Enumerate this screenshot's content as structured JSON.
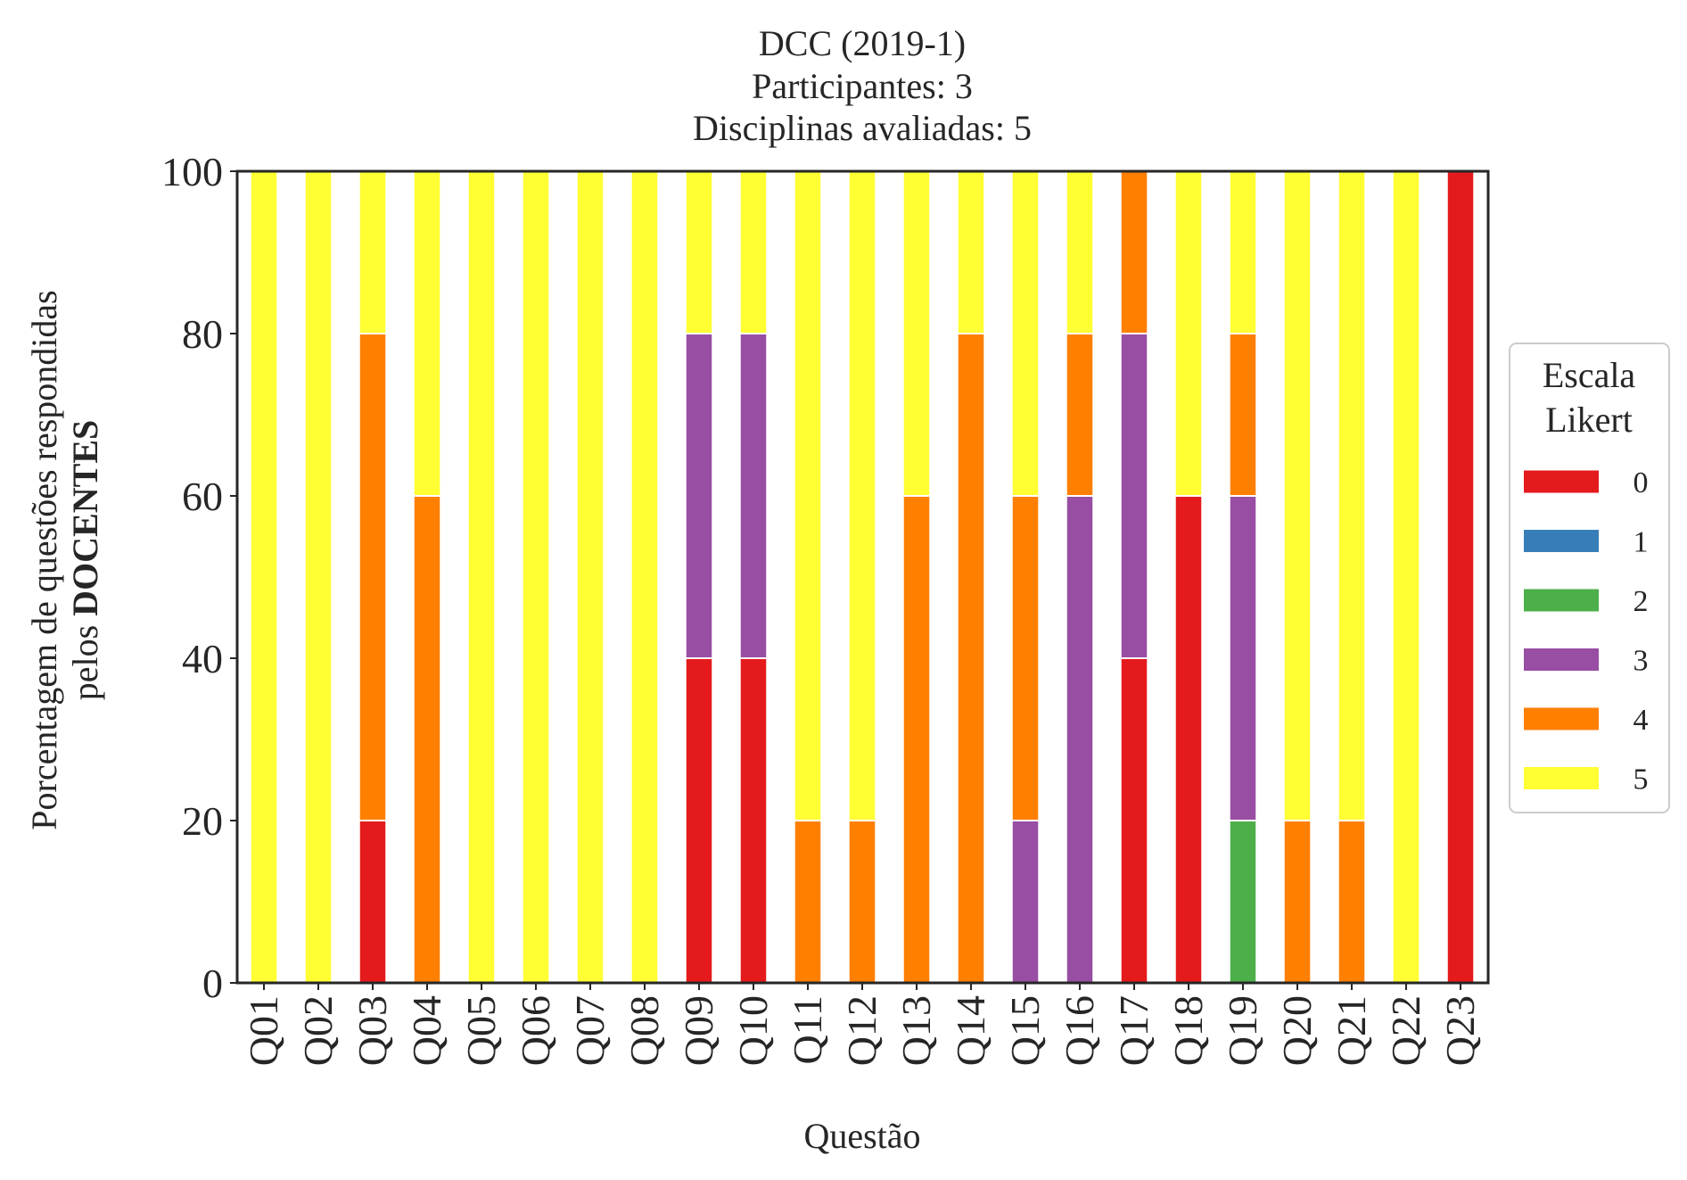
{
  "colors": {
    "likert_0": "#e41a1c",
    "likert_1": "#377eb8",
    "likert_2": "#4daf4a",
    "likert_3": "#984ea3",
    "likert_4": "#ff7f00",
    "likert_5": "#ffff33",
    "axis": "#262626",
    "bar_edge": "#ffffff"
  },
  "chart_data": {
    "type": "bar",
    "stacked": true,
    "title_lines": [
      "DCC (2019-1)",
      "Participantes: 3",
      "Disciplinas avaliadas: 5"
    ],
    "xlabel": "Questão",
    "ylabel_line1": "Porcentagem de questões respondidas",
    "ylabel_line2_prefix": "pelos ",
    "ylabel_line2_bold": "DOCENTES",
    "ylim": [
      0,
      100
    ],
    "yticks": [
      0,
      20,
      40,
      60,
      80,
      100
    ],
    "grid": false,
    "legend": {
      "title_lines": [
        "Escala",
        "Likert"
      ],
      "placement": "center-right outside"
    },
    "categories": [
      "Q01",
      "Q02",
      "Q03",
      "Q04",
      "Q05",
      "Q06",
      "Q07",
      "Q08",
      "Q09",
      "Q10",
      "Q11",
      "Q12",
      "Q13",
      "Q14",
      "Q15",
      "Q16",
      "Q17",
      "Q18",
      "Q19",
      "Q20",
      "Q21",
      "Q22",
      "Q23"
    ],
    "series": [
      {
        "name": "0",
        "color_key": "likert_0",
        "values": [
          0,
          0,
          20,
          0,
          0,
          0,
          0,
          0,
          40,
          40,
          0,
          0,
          0,
          0,
          0,
          0,
          40,
          60,
          0,
          0,
          0,
          0,
          100
        ]
      },
      {
        "name": "1",
        "color_key": "likert_1",
        "values": [
          0,
          0,
          0,
          0,
          0,
          0,
          0,
          0,
          0,
          0,
          0,
          0,
          0,
          0,
          0,
          0,
          0,
          0,
          0,
          0,
          0,
          0,
          0
        ]
      },
      {
        "name": "2",
        "color_key": "likert_2",
        "values": [
          0,
          0,
          0,
          0,
          0,
          0,
          0,
          0,
          0,
          0,
          0,
          0,
          0,
          0,
          0,
          0,
          0,
          0,
          20,
          0,
          0,
          0,
          0
        ]
      },
      {
        "name": "3",
        "color_key": "likert_3",
        "values": [
          0,
          0,
          0,
          0,
          0,
          0,
          0,
          0,
          40,
          40,
          0,
          0,
          0,
          0,
          20,
          60,
          40,
          0,
          40,
          0,
          0,
          0,
          0
        ]
      },
      {
        "name": "4",
        "color_key": "likert_4",
        "values": [
          0,
          0,
          60,
          60,
          0,
          0,
          0,
          0,
          0,
          0,
          20,
          20,
          60,
          80,
          40,
          20,
          20,
          0,
          20,
          20,
          20,
          0,
          0
        ]
      },
      {
        "name": "5",
        "color_key": "likert_5",
        "values": [
          100,
          100,
          20,
          40,
          100,
          100,
          100,
          100,
          20,
          20,
          80,
          80,
          40,
          20,
          40,
          20,
          0,
          40,
          20,
          80,
          80,
          100,
          0
        ]
      }
    ]
  }
}
